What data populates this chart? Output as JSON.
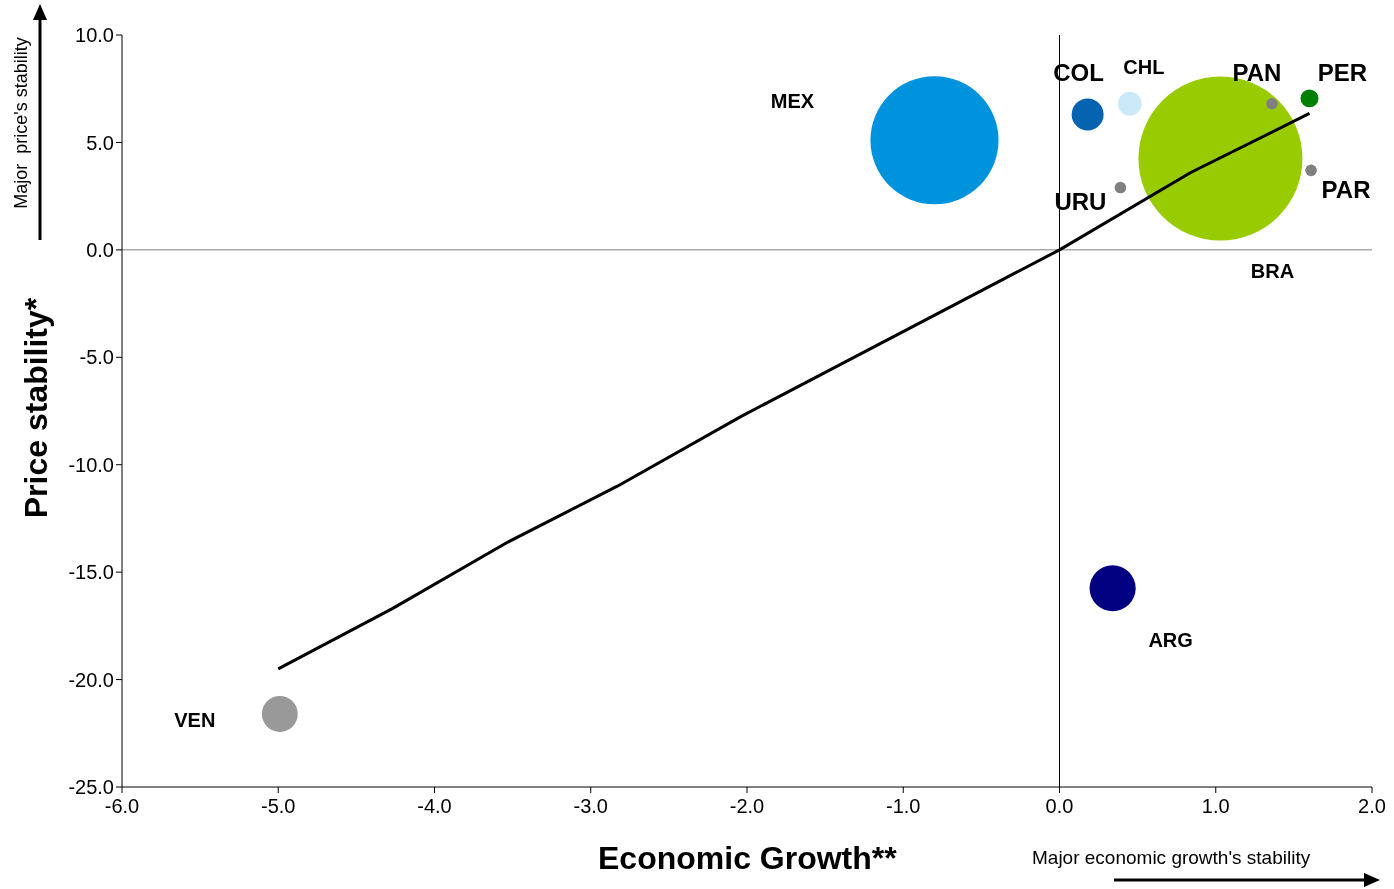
{
  "chart_data": {
    "type": "bubble",
    "xlabel": "Economic Growth**",
    "ylabel": "Price stability*",
    "annotations": [
      "Major  price's stability",
      "Major economic growth's stability"
    ],
    "xlim": [
      -6,
      2
    ],
    "ylim": [
      -25,
      10
    ],
    "xticks": [
      {
        "value": -6,
        "label": "-6.0"
      },
      {
        "value": -5,
        "label": "-5.0"
      },
      {
        "value": -4,
        "label": "-4.0"
      },
      {
        "value": -3,
        "label": "-3.0"
      },
      {
        "value": -2,
        "label": "-2.0"
      },
      {
        "value": -1,
        "label": "-1.0"
      },
      {
        "value": 0,
        "label": "0.0"
      },
      {
        "value": 1,
        "label": "1.0"
      },
      {
        "value": 2,
        "label": "2.0"
      }
    ],
    "yticks": [
      {
        "value": -25,
        "label": "-25.0"
      },
      {
        "value": -20,
        "label": "-20.0"
      },
      {
        "value": -15,
        "label": "-15.0"
      },
      {
        "value": -10,
        "label": "-10.0"
      },
      {
        "value": -5,
        "label": "-5.0"
      },
      {
        "value": 0,
        "label": "0.0"
      },
      {
        "value": 5,
        "label": "5.0"
      },
      {
        "value": 10,
        "label": "10.0"
      }
    ],
    "ref_lines": [
      {
        "axis": "x",
        "value": 0,
        "color": "#000000"
      },
      {
        "axis": "y",
        "value": 0,
        "color": "#808080"
      }
    ],
    "series": [
      {
        "name": "BRA",
        "color": "#99cc00",
        "x": [
          1.03
        ],
        "values": [
          4.25
        ],
        "sizes": [
          1
        ]
      },
      {
        "name": "MEX",
        "color": "#0093dd",
        "x": [
          -0.8
        ],
        "values": [
          5.1
        ],
        "sizes": [
          0.61
        ]
      },
      {
        "name": "COL",
        "color": "#0563b0",
        "x": [
          0.18
        ],
        "values": [
          6.3
        ],
        "sizes": [
          0.038
        ]
      },
      {
        "name": "CHL",
        "color": "#cce9fa",
        "x": [
          0.45
        ],
        "values": [
          6.8
        ],
        "sizes": [
          0.021
        ]
      },
      {
        "name": "PAN",
        "color": "#808080",
        "x": [
          1.36
        ],
        "values": [
          6.8
        ],
        "sizes": [
          0.005
        ]
      },
      {
        "name": "PER",
        "color": "#008000",
        "x": [
          1.6
        ],
        "values": [
          7.05
        ],
        "sizes": [
          0.012
        ]
      },
      {
        "name": "PAR",
        "color": "#808080",
        "x": [
          1.61
        ],
        "values": [
          3.7
        ],
        "sizes": [
          0.005
        ]
      },
      {
        "name": "URU",
        "color": "#808080",
        "x": [
          0.39
        ],
        "values": [
          2.9
        ],
        "sizes": [
          0.005
        ]
      },
      {
        "name": "ARG",
        "color": "#000080",
        "x": [
          0.34
        ],
        "values": [
          -15.75
        ],
        "sizes": [
          0.079
        ]
      },
      {
        "name": "VEN",
        "color": "#999999",
        "x": [
          -4.99
        ],
        "values": [
          -21.6
        ],
        "sizes": [
          0.048
        ]
      },
      {
        "type": "line",
        "color": "#000000",
        "x": [
          -5.0,
          -4.27,
          -3.53,
          -2.83,
          -2.04,
          0,
          0.84,
          1.6
        ],
        "values": [
          -19.5,
          -16.7,
          -13.6,
          -11.0,
          -7.76,
          0,
          3.6,
          6.35
        ]
      }
    ]
  }
}
